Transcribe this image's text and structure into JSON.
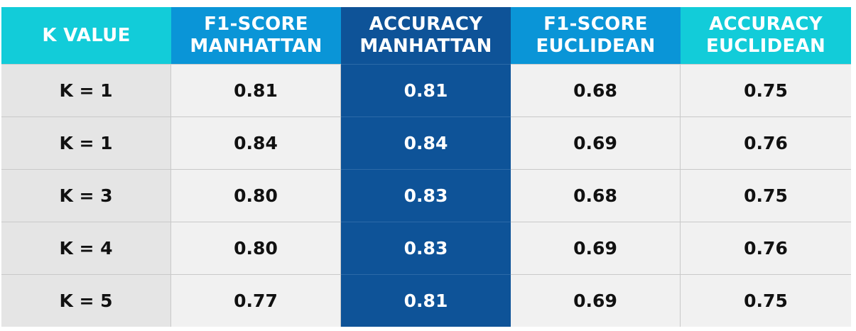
{
  "chart_data": {
    "type": "table",
    "columns": [
      {
        "label": "K VALUE",
        "color": "#12ccd9"
      },
      {
        "label": "F1-SCORE\nMANHATTAN",
        "color": "#0a95d7"
      },
      {
        "label": "ACCURACY\nMANHATTAN",
        "color": "#0e5398"
      },
      {
        "label": "F1-SCORE\nEUCLIDEAN",
        "color": "#0a95d7"
      },
      {
        "label": "ACCURACY\nEUCLIDEAN",
        "color": "#12ccd9"
      }
    ],
    "highlight_column": 2,
    "rows": [
      [
        "K = 1",
        "0.81",
        "0.81",
        "0.68",
        "0.75"
      ],
      [
        "K = 1",
        "0.84",
        "0.84",
        "0.69",
        "0.76"
      ],
      [
        "K = 3",
        "0.80",
        "0.83",
        "0.68",
        "0.75"
      ],
      [
        "K = 4",
        "0.80",
        "0.83",
        "0.69",
        "0.76"
      ],
      [
        "K = 5",
        "0.77",
        "0.81",
        "0.69",
        "0.75"
      ]
    ]
  }
}
